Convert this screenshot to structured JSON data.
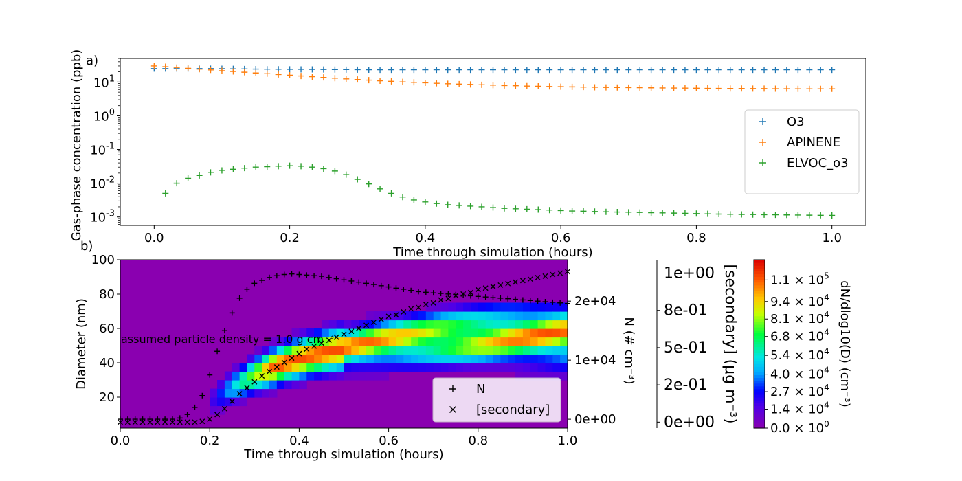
{
  "panel_labels": {
    "a": "a)",
    "b": "b)"
  },
  "colors": {
    "O3": "#1f77b4",
    "APINENE": "#ff7f0e",
    "ELVOC_o3": "#2ca02c",
    "background": "#8a00b0"
  },
  "chart_data": [
    {
      "type": "scatter",
      "panel": "a)",
      "xlabel": "Time through simulation (hours)",
      "ylabel": "Gas-phase concentration (ppb)",
      "xlim": [
        -0.05,
        1.05
      ],
      "ylim_log10": [
        -3.25,
        1.7
      ],
      "y_scale": "log",
      "xticks": [
        "0.0",
        "0.2",
        "0.4",
        "0.6",
        "0.8",
        "1.0"
      ],
      "yticks_base": "10",
      "yticks_exp": [
        "-3",
        "-2",
        "-1",
        "0",
        "1"
      ],
      "legend": {
        "position": "center-right",
        "entries": [
          "O3",
          "APINENE",
          "ELVOC_o3"
        ]
      },
      "marker": "+",
      "series": [
        {
          "name": "O3",
          "x": [
            0.0,
            0.0167,
            0.0333,
            0.05,
            0.0667,
            0.0833,
            0.1,
            0.1167,
            0.1333,
            0.15,
            0.1667,
            0.1833,
            0.2,
            0.2167,
            0.2333,
            0.25,
            0.2667,
            0.2833,
            0.3,
            0.3167,
            0.3333,
            0.35,
            0.3667,
            0.3833,
            0.4,
            0.4167,
            0.4333,
            0.45,
            0.4667,
            0.4833,
            0.5,
            0.5167,
            0.5333,
            0.55,
            0.5667,
            0.5833,
            0.6,
            0.6167,
            0.6333,
            0.65,
            0.6667,
            0.6833,
            0.7,
            0.7167,
            0.7333,
            0.75,
            0.7667,
            0.7833,
            0.8,
            0.8167,
            0.8333,
            0.85,
            0.8667,
            0.8833,
            0.9,
            0.9167,
            0.9333,
            0.95,
            0.9667,
            0.9833,
            1.0
          ],
          "y": [
            25,
            25,
            25,
            25,
            25,
            25,
            24.8,
            24.6,
            24.4,
            24.2,
            24,
            23.9,
            23.8,
            23.7,
            23.6,
            23.5,
            23.4,
            23.3,
            23.2,
            23.1,
            23,
            23,
            23,
            23,
            23,
            23,
            23,
            23,
            23,
            23,
            23,
            23,
            23,
            23,
            23,
            23,
            23,
            23,
            23,
            23,
            23,
            23,
            23,
            23,
            23,
            23,
            23,
            23,
            23,
            23,
            23,
            23,
            23,
            23,
            23,
            23,
            23,
            23,
            23,
            23,
            23
          ]
        },
        {
          "name": "APINENE",
          "x": [
            0.0,
            0.0167,
            0.0333,
            0.05,
            0.0667,
            0.0833,
            0.1,
            0.1167,
            0.1333,
            0.15,
            0.1667,
            0.1833,
            0.2,
            0.2167,
            0.2333,
            0.25,
            0.2667,
            0.2833,
            0.3,
            0.3167,
            0.3333,
            0.35,
            0.3667,
            0.3833,
            0.4,
            0.4167,
            0.4333,
            0.45,
            0.4667,
            0.4833,
            0.5,
            0.5167,
            0.5333,
            0.55,
            0.5667,
            0.5833,
            0.6,
            0.6167,
            0.6333,
            0.65,
            0.6667,
            0.6833,
            0.7,
            0.7167,
            0.7333,
            0.75,
            0.7667,
            0.7833,
            0.8,
            0.8167,
            0.8333,
            0.85,
            0.8667,
            0.8833,
            0.9,
            0.9167,
            0.9333,
            0.95,
            0.9667,
            0.9833,
            1.0
          ],
          "y": [
            30,
            28.5,
            27,
            25.5,
            24,
            22.8,
            21.6,
            20.5,
            19.5,
            18.5,
            17.6,
            16.7,
            15.9,
            15.1,
            14.4,
            13.7,
            13,
            12.4,
            11.9,
            11.4,
            10.9,
            10.5,
            10.1,
            9.8,
            9.5,
            9.2,
            8.9,
            8.7,
            8.5,
            8.3,
            8.1,
            7.9,
            7.8,
            7.6,
            7.5,
            7.4,
            7.3,
            7.2,
            7.1,
            7,
            6.95,
            6.9,
            6.85,
            6.8,
            6.75,
            6.7,
            6.65,
            6.6,
            6.55,
            6.5,
            6.5,
            6.45,
            6.45,
            6.4,
            6.4,
            6.35,
            6.35,
            6.3,
            6.3,
            6.3,
            6.3
          ]
        },
        {
          "name": "ELVOC_o3",
          "x": [
            0.0167,
            0.0333,
            0.05,
            0.0667,
            0.0833,
            0.1,
            0.1167,
            0.1333,
            0.15,
            0.1667,
            0.1833,
            0.2,
            0.2167,
            0.2333,
            0.25,
            0.2667,
            0.2833,
            0.3,
            0.3167,
            0.3333,
            0.35,
            0.3667,
            0.3833,
            0.4,
            0.4167,
            0.4333,
            0.45,
            0.4667,
            0.4833,
            0.5,
            0.5167,
            0.5333,
            0.55,
            0.5667,
            0.5833,
            0.6,
            0.6167,
            0.6333,
            0.65,
            0.6667,
            0.6833,
            0.7,
            0.7167,
            0.7333,
            0.75,
            0.7667,
            0.7833,
            0.8,
            0.8167,
            0.8333,
            0.85,
            0.8667,
            0.8833,
            0.9,
            0.9167,
            0.9333,
            0.95,
            0.9667,
            0.9833,
            1.0
          ],
          "y": [
            0.005,
            0.01,
            0.014,
            0.017,
            0.021,
            0.024,
            0.026,
            0.028,
            0.03,
            0.031,
            0.032,
            0.033,
            0.032,
            0.03,
            0.027,
            0.023,
            0.018,
            0.013,
            0.0095,
            0.0068,
            0.005,
            0.0039,
            0.0032,
            0.0028,
            0.0025,
            0.0023,
            0.0022,
            0.0021,
            0.002,
            0.0019,
            0.0018,
            0.00175,
            0.0017,
            0.00165,
            0.0016,
            0.00155,
            0.0015,
            0.00148,
            0.00145,
            0.00142,
            0.0014,
            0.00138,
            0.00136,
            0.00134,
            0.00132,
            0.0013,
            0.00128,
            0.00126,
            0.00124,
            0.00122,
            0.0012,
            0.00119,
            0.00118,
            0.00117,
            0.00116,
            0.00115,
            0.00114,
            0.00113,
            0.00112,
            0.00111
          ]
        }
      ]
    },
    {
      "type": "heatmap",
      "panel": "b)",
      "xlabel": "Time through simulation (hours)",
      "ylabel": "Diameter (nm)",
      "xlim": [
        0,
        1
      ],
      "ylim": [
        2,
        100
      ],
      "xticks": [
        "0.0",
        "0.2",
        "0.4",
        "0.6",
        "0.8",
        "1.0"
      ],
      "yticks": [
        "20",
        "40",
        "60",
        "80",
        "100"
      ],
      "annotation": "assumed particle density = 1.0 g cm⁻³",
      "colorbar": {
        "label": "dN/dlog10(D) (cm⁻³)",
        "range": [
          0,
          125000
        ],
        "ticks": [
          {
            "value": 0,
            "mant": "0.0",
            "exp": "0"
          },
          {
            "value": 14000,
            "mant": "1.4",
            "exp": "4"
          },
          {
            "value": 27000,
            "mant": "2.7",
            "exp": "4"
          },
          {
            "value": 40000,
            "mant": "4.0",
            "exp": "4"
          },
          {
            "value": 54000,
            "mant": "5.4",
            "exp": "4"
          },
          {
            "value": 68000,
            "mant": "6.8",
            "exp": "4"
          },
          {
            "value": 81000,
            "mant": "8.1",
            "exp": "4"
          },
          {
            "value": 94000,
            "mant": "9.4",
            "exp": "4"
          },
          {
            "value": 110000,
            "mant": "1.1",
            "exp": "5"
          }
        ]
      },
      "axis_N": {
        "label": "N (# cm⁻³)",
        "range": [
          -1500,
          27000
        ],
        "ticks": [
          {
            "value": 0,
            "label": "0e+00"
          },
          {
            "value": 10000,
            "label": "1e+04"
          },
          {
            "value": 20000,
            "label": "2e+04"
          }
        ]
      },
      "axis_secondary": {
        "label": "[secondary] (μg m⁻³)",
        "range": [
          -0.04,
          1.09
        ],
        "ticks": [
          {
            "value": 0,
            "label": "0e+00"
          },
          {
            "value": 0.25,
            "label": "2e-01"
          },
          {
            "value": 0.5,
            "label": "5e-01"
          },
          {
            "value": 0.75,
            "label": "8e-01"
          },
          {
            "value": 1.0,
            "label": "1e+00"
          }
        ]
      },
      "legend": {
        "position": "lower-right",
        "entries": [
          "N",
          "[secondary]"
        ]
      },
      "N": {
        "x": [
          0.0,
          0.0167,
          0.0333,
          0.05,
          0.0667,
          0.0833,
          0.1,
          0.1167,
          0.1333,
          0.15,
          0.1667,
          0.1833,
          0.2,
          0.2167,
          0.2333,
          0.25,
          0.2667,
          0.2833,
          0.3,
          0.3167,
          0.3333,
          0.35,
          0.3667,
          0.3833,
          0.4,
          0.4167,
          0.4333,
          0.45,
          0.4667,
          0.4833,
          0.5,
          0.5167,
          0.5333,
          0.55,
          0.5667,
          0.5833,
          0.6,
          0.6167,
          0.6333,
          0.65,
          0.6667,
          0.6833,
          0.7,
          0.7167,
          0.7333,
          0.75,
          0.7667,
          0.7833,
          0.8,
          0.8167,
          0.8333,
          0.85,
          0.8667,
          0.8833,
          0.9,
          0.9167,
          0.9333,
          0.95,
          0.9667,
          0.9833,
          1.0
        ],
        "y": [
          0,
          0,
          0,
          0,
          0,
          0,
          0,
          0,
          200,
          800,
          2000,
          4000,
          7500,
          11500,
          15000,
          18000,
          20500,
          22000,
          23000,
          23500,
          24000,
          24300,
          24500,
          24600,
          24500,
          24400,
          24300,
          24200,
          24000,
          23800,
          23600,
          23400,
          23200,
          23000,
          22800,
          22600,
          22400,
          22200,
          22000,
          21800,
          21600,
          21500,
          21400,
          21300,
          21200,
          21100,
          21000,
          20900,
          20800,
          20700,
          20600,
          20500,
          20400,
          20300,
          20200,
          20100,
          20000,
          19900,
          19800,
          19700,
          19600
        ]
      },
      "secondary": {
        "x": [
          0.0,
          0.0167,
          0.0333,
          0.05,
          0.0667,
          0.0833,
          0.1,
          0.1167,
          0.1333,
          0.15,
          0.1667,
          0.1833,
          0.2,
          0.2167,
          0.2333,
          0.25,
          0.2667,
          0.2833,
          0.3,
          0.3167,
          0.3333,
          0.35,
          0.3667,
          0.3833,
          0.4,
          0.4167,
          0.4333,
          0.45,
          0.4667,
          0.4833,
          0.5,
          0.5167,
          0.5333,
          0.55,
          0.5667,
          0.5833,
          0.6,
          0.6167,
          0.6333,
          0.65,
          0.6667,
          0.6833,
          0.7,
          0.7167,
          0.7333,
          0.75,
          0.7667,
          0.7833,
          0.8,
          0.8167,
          0.8333,
          0.85,
          0.8667,
          0.8833,
          0.9,
          0.9167,
          0.9333,
          0.95,
          0.9667,
          0.9833,
          1.0
        ],
        "y": [
          0,
          0,
          0,
          0,
          0,
          0,
          0,
          0,
          0,
          0,
          0,
          0.005,
          0.02,
          0.05,
          0.09,
          0.14,
          0.19,
          0.23,
          0.27,
          0.31,
          0.34,
          0.37,
          0.4,
          0.43,
          0.46,
          0.49,
          0.51,
          0.53,
          0.55,
          0.57,
          0.59,
          0.61,
          0.63,
          0.65,
          0.67,
          0.69,
          0.71,
          0.72,
          0.74,
          0.76,
          0.77,
          0.79,
          0.8,
          0.82,
          0.83,
          0.85,
          0.86,
          0.87,
          0.89,
          0.9,
          0.91,
          0.92,
          0.93,
          0.94,
          0.95,
          0.96,
          0.97,
          0.98,
          0.99,
          1.0,
          1.01
        ]
      }
    }
  ]
}
